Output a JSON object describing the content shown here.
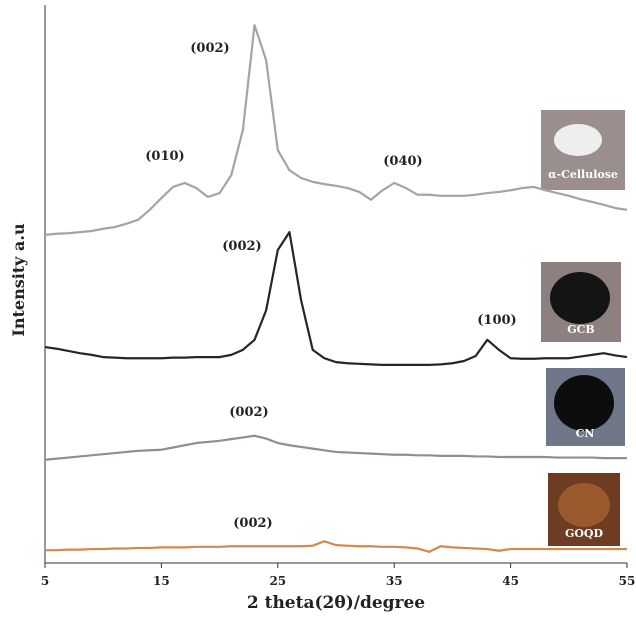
{
  "chart_data": {
    "type": "line",
    "x_label": "2 theta(2θ)/degree",
    "y_label": "Intensity a.u",
    "xlim": [
      5,
      55
    ],
    "xticks": [
      5,
      15,
      25,
      35,
      45,
      55
    ],
    "ylim": [
      0,
      100
    ],
    "x": [
      5,
      6,
      7,
      8,
      9,
      10,
      11,
      12,
      13,
      14,
      15,
      16,
      17,
      18,
      19,
      20,
      21,
      22,
      23,
      24,
      25,
      26,
      27,
      28,
      29,
      30,
      31,
      32,
      33,
      34,
      35,
      36,
      37,
      38,
      39,
      40,
      41,
      42,
      43,
      44,
      45,
      46,
      47,
      48,
      49,
      50,
      51,
      52,
      53,
      54,
      55
    ],
    "series": [
      {
        "name": "α-Cellulose",
        "color": "#a4a4a6",
        "values": [
          58.8,
          59.0,
          59.1,
          59.3,
          59.5,
          59.9,
          60.2,
          60.8,
          61.5,
          63.3,
          65.4,
          67.4,
          68.1,
          67.2,
          65.6,
          66.3,
          69.5,
          77.6,
          96.4,
          90.1,
          74.0,
          70.4,
          69.0,
          68.3,
          67.9,
          67.6,
          67.2,
          66.5,
          65.1,
          66.8,
          68.1,
          67.2,
          66.0,
          66.0,
          65.8,
          65.8,
          65.8,
          66.0,
          66.3,
          66.5,
          66.8,
          67.2,
          67.4,
          66.8,
          66.3,
          65.8,
          65.2,
          64.7,
          64.2,
          63.6,
          63.3
        ]
      },
      {
        "name": "GCB",
        "color": "#262626",
        "values": [
          38.7,
          38.4,
          38.0,
          37.6,
          37.3,
          36.9,
          36.8,
          36.7,
          36.7,
          36.7,
          36.7,
          36.8,
          36.8,
          36.9,
          36.9,
          36.9,
          37.3,
          38.2,
          40.0,
          45.3,
          56.1,
          59.3,
          47.1,
          38.2,
          36.7,
          36.0,
          35.8,
          35.7,
          35.6,
          35.5,
          35.5,
          35.5,
          35.5,
          35.5,
          35.6,
          35.8,
          36.2,
          37.1,
          40.0,
          38.2,
          36.7,
          36.6,
          36.6,
          36.7,
          36.7,
          36.7,
          37.0,
          37.3,
          37.6,
          37.2,
          36.9
        ]
      },
      {
        "name": "CN",
        "color": "#8e8e96",
        "values": [
          18.5,
          18.7,
          18.9,
          19.1,
          19.3,
          19.5,
          19.7,
          19.9,
          20.1,
          20.2,
          20.3,
          20.7,
          21.1,
          21.5,
          21.7,
          21.9,
          22.2,
          22.5,
          22.8,
          22.3,
          21.5,
          21.1,
          20.8,
          20.5,
          20.2,
          19.9,
          19.8,
          19.7,
          19.6,
          19.5,
          19.4,
          19.4,
          19.3,
          19.3,
          19.2,
          19.2,
          19.2,
          19.1,
          19.1,
          19.0,
          19.0,
          19.0,
          19.0,
          19.0,
          18.9,
          18.9,
          18.9,
          18.9,
          18.8,
          18.8,
          18.8
        ]
      },
      {
        "name": "GOQD",
        "color": "#d4894a",
        "values": [
          2.3,
          2.3,
          2.4,
          2.4,
          2.5,
          2.5,
          2.6,
          2.6,
          2.7,
          2.7,
          2.8,
          2.8,
          2.8,
          2.9,
          2.9,
          2.9,
          3.0,
          3.0,
          3.0,
          3.0,
          3.0,
          3.0,
          3.0,
          3.1,
          3.9,
          3.2,
          3.1,
          3.0,
          3.0,
          2.9,
          2.9,
          2.8,
          2.6,
          2.0,
          3.0,
          2.8,
          2.7,
          2.6,
          2.5,
          2.2,
          2.5,
          2.5,
          2.5,
          2.5,
          2.5,
          2.5,
          2.5,
          2.5,
          2.5,
          2.5,
          2.5
        ]
      }
    ],
    "annotations": [
      "(002)",
      "(010)",
      "(040)",
      "(002)",
      "(100)",
      "(002)",
      "(002)"
    ]
  }
}
